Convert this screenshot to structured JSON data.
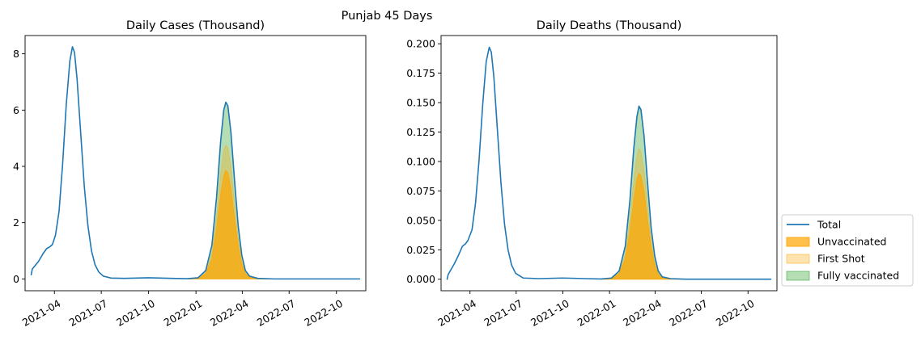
{
  "figure": {
    "suptitle": "Punjab 45 Days"
  },
  "legend": {
    "placement": "outside-right",
    "entries": [
      {
        "label": "Total",
        "kind": "line",
        "color": "#1f77b4"
      },
      {
        "label": "Unvaccinated",
        "kind": "patch",
        "color": "#ffa500",
        "alpha": 0.7
      },
      {
        "label": "First Shot",
        "kind": "patch",
        "color": "#ffa500",
        "alpha": 0.3
      },
      {
        "label": "Fully vaccinated",
        "kind": "patch",
        "color": "#2ca02c",
        "alpha": 0.35
      }
    ]
  },
  "chart_data": [
    {
      "type": "area",
      "title": "Daily Cases (Thousand)",
      "x_type": "date",
      "xlim": [
        "2021-02-03",
        "2022-11-27"
      ],
      "ylim": [
        -0.42,
        8.65
      ],
      "x_ticks": [
        "2021-04",
        "2021-07",
        "2021-10",
        "2022-01",
        "2022-04",
        "2022-07",
        "2022-10"
      ],
      "y_ticks": [
        "0",
        "2",
        "4",
        "6",
        "8"
      ],
      "y_tick_values": [
        0,
        2,
        4,
        6,
        8
      ],
      "series": [
        {
          "name": "Total",
          "type": "line",
          "color": "#1f77b4",
          "points": [
            [
              "2021-02-15",
              0.15
            ],
            [
              "2021-02-17",
              0.35
            ],
            [
              "2021-03-01",
              0.62
            ],
            [
              "2021-03-10",
              0.9
            ],
            [
              "2021-03-17",
              1.08
            ],
            [
              "2021-03-23",
              1.14
            ],
            [
              "2021-03-28",
              1.22
            ],
            [
              "2021-04-03",
              1.55
            ],
            [
              "2021-04-10",
              2.4
            ],
            [
              "2021-04-17",
              4.1
            ],
            [
              "2021-04-24",
              6.2
            ],
            [
              "2021-05-01",
              7.75
            ],
            [
              "2021-05-06",
              8.25
            ],
            [
              "2021-05-10",
              8.05
            ],
            [
              "2021-05-15",
              7.1
            ],
            [
              "2021-05-22",
              5.2
            ],
            [
              "2021-05-29",
              3.3
            ],
            [
              "2021-06-05",
              1.9
            ],
            [
              "2021-06-12",
              1.0
            ],
            [
              "2021-06-19",
              0.5
            ],
            [
              "2021-06-26",
              0.25
            ],
            [
              "2021-07-05",
              0.1
            ],
            [
              "2021-07-20",
              0.03
            ],
            [
              "2021-08-15",
              0.02
            ],
            [
              "2021-10-01",
              0.04
            ],
            [
              "2021-11-15",
              0.02
            ],
            [
              "2021-12-15",
              0.01
            ],
            [
              "2022-01-05",
              0.04
            ],
            [
              "2022-01-20",
              0.3
            ],
            [
              "2022-02-01",
              1.2
            ],
            [
              "2022-02-10",
              2.9
            ],
            [
              "2022-02-18",
              4.9
            ],
            [
              "2022-02-24",
              6.0
            ],
            [
              "2022-02-28",
              6.28
            ],
            [
              "2022-03-04",
              6.15
            ],
            [
              "2022-03-10",
              5.2
            ],
            [
              "2022-03-17",
              3.5
            ],
            [
              "2022-03-24",
              1.9
            ],
            [
              "2022-03-31",
              0.85
            ],
            [
              "2022-04-07",
              0.3
            ],
            [
              "2022-04-15",
              0.1
            ],
            [
              "2022-05-01",
              0.02
            ],
            [
              "2022-06-01",
              0.0
            ],
            [
              "2022-11-15",
              0.0
            ]
          ]
        },
        {
          "name": "Unvaccinated",
          "type": "area",
          "color": "#ffa500",
          "alpha": 0.7,
          "points": [
            [
              "2021-12-15",
              0.0
            ],
            [
              "2022-01-05",
              0.02
            ],
            [
              "2022-01-20",
              0.18
            ],
            [
              "2022-02-01",
              0.72
            ],
            [
              "2022-02-10",
              1.78
            ],
            [
              "2022-02-18",
              3.0
            ],
            [
              "2022-02-24",
              3.68
            ],
            [
              "2022-02-28",
              3.87
            ],
            [
              "2022-03-04",
              3.78
            ],
            [
              "2022-03-10",
              3.2
            ],
            [
              "2022-03-17",
              2.15
            ],
            [
              "2022-03-24",
              1.17
            ],
            [
              "2022-03-31",
              0.52
            ],
            [
              "2022-04-07",
              0.18
            ],
            [
              "2022-04-15",
              0.06
            ],
            [
              "2022-05-01",
              0.01
            ],
            [
              "2022-06-01",
              0.0
            ],
            [
              "2022-11-15",
              0.0
            ]
          ]
        },
        {
          "name": "First Shot",
          "type": "area",
          "color": "#ffa500",
          "alpha": 0.3,
          "points": [
            [
              "2021-12-15",
              0.0
            ],
            [
              "2022-01-05",
              0.03
            ],
            [
              "2022-01-20",
              0.23
            ],
            [
              "2022-02-01",
              0.9
            ],
            [
              "2022-02-10",
              2.2
            ],
            [
              "2022-02-18",
              3.7
            ],
            [
              "2022-02-24",
              4.55
            ],
            [
              "2022-02-28",
              4.75
            ],
            [
              "2022-03-04",
              4.65
            ],
            [
              "2022-03-10",
              3.95
            ],
            [
              "2022-03-17",
              2.65
            ],
            [
              "2022-03-24",
              1.44
            ],
            [
              "2022-03-31",
              0.64
            ],
            [
              "2022-04-07",
              0.23
            ],
            [
              "2022-04-15",
              0.08
            ],
            [
              "2022-05-01",
              0.015
            ],
            [
              "2022-06-01",
              0.0
            ],
            [
              "2022-11-15",
              0.0
            ]
          ]
        },
        {
          "name": "Fully vaccinated",
          "type": "area",
          "color": "#2ca02c",
          "alpha": 0.35,
          "points": [
            [
              "2021-12-15",
              0.0
            ],
            [
              "2022-01-05",
              0.04
            ],
            [
              "2022-01-20",
              0.3
            ],
            [
              "2022-02-01",
              1.2
            ],
            [
              "2022-02-10",
              2.9
            ],
            [
              "2022-02-18",
              4.9
            ],
            [
              "2022-02-24",
              6.0
            ],
            [
              "2022-02-28",
              6.28
            ],
            [
              "2022-03-04",
              6.15
            ],
            [
              "2022-03-10",
              5.2
            ],
            [
              "2022-03-17",
              3.5
            ],
            [
              "2022-03-24",
              1.9
            ],
            [
              "2022-03-31",
              0.85
            ],
            [
              "2022-04-07",
              0.3
            ],
            [
              "2022-04-15",
              0.1
            ],
            [
              "2022-05-01",
              0.02
            ],
            [
              "2022-06-01",
              0.0
            ],
            [
              "2022-11-15",
              0.0
            ]
          ]
        }
      ]
    },
    {
      "type": "area",
      "title": "Daily Deaths (Thousand)",
      "x_type": "date",
      "xlim": [
        "2021-02-03",
        "2022-11-27"
      ],
      "ylim": [
        -0.0098,
        0.207
      ],
      "x_ticks": [
        "2021-04",
        "2021-07",
        "2021-10",
        "2022-01",
        "2022-04",
        "2022-07",
        "2022-10"
      ],
      "y_ticks": [
        "0.000",
        "0.025",
        "0.050",
        "0.075",
        "0.100",
        "0.125",
        "0.150",
        "0.175",
        "0.200"
      ],
      "y_tick_values": [
        0,
        0.025,
        0.05,
        0.075,
        0.1,
        0.125,
        0.15,
        0.175,
        0.2
      ],
      "series": [
        {
          "name": "Total",
          "type": "line",
          "color": "#1f77b4",
          "points": [
            [
              "2021-02-15",
              0.0
            ],
            [
              "2021-02-17",
              0.004
            ],
            [
              "2021-03-01",
              0.013
            ],
            [
              "2021-03-10",
              0.021
            ],
            [
              "2021-03-17",
              0.028
            ],
            [
              "2021-03-23",
              0.03
            ],
            [
              "2021-03-28",
              0.033
            ],
            [
              "2021-04-05",
              0.042
            ],
            [
              "2021-04-12",
              0.065
            ],
            [
              "2021-04-19",
              0.102
            ],
            [
              "2021-04-26",
              0.148
            ],
            [
              "2021-05-03",
              0.185
            ],
            [
              "2021-05-09",
              0.197
            ],
            [
              "2021-05-13",
              0.193
            ],
            [
              "2021-05-18",
              0.172
            ],
            [
              "2021-05-25",
              0.127
            ],
            [
              "2021-06-01",
              0.082
            ],
            [
              "2021-06-08",
              0.047
            ],
            [
              "2021-06-15",
              0.025
            ],
            [
              "2021-06-22",
              0.012
            ],
            [
              "2021-06-30",
              0.005
            ],
            [
              "2021-07-15",
              0.001
            ],
            [
              "2021-08-15",
              0.0005
            ],
            [
              "2021-10-01",
              0.001
            ],
            [
              "2021-11-15",
              0.0005
            ],
            [
              "2021-12-15",
              0.0002
            ],
            [
              "2022-01-05",
              0.001
            ],
            [
              "2022-01-20",
              0.007
            ],
            [
              "2022-02-01",
              0.028
            ],
            [
              "2022-02-10",
              0.066
            ],
            [
              "2022-02-18",
              0.112
            ],
            [
              "2022-02-24",
              0.138
            ],
            [
              "2022-02-28",
              0.147
            ],
            [
              "2022-03-04",
              0.144
            ],
            [
              "2022-03-10",
              0.122
            ],
            [
              "2022-03-17",
              0.082
            ],
            [
              "2022-03-24",
              0.044
            ],
            [
              "2022-03-31",
              0.02
            ],
            [
              "2022-04-07",
              0.007
            ],
            [
              "2022-04-15",
              0.002
            ],
            [
              "2022-05-01",
              0.0005
            ],
            [
              "2022-06-01",
              0.0
            ],
            [
              "2022-11-15",
              0.0
            ]
          ]
        },
        {
          "name": "Unvaccinated",
          "type": "area",
          "color": "#ffa500",
          "alpha": 0.7,
          "points": [
            [
              "2021-12-15",
              0.0
            ],
            [
              "2022-01-05",
              0.0006
            ],
            [
              "2022-01-20",
              0.0043
            ],
            [
              "2022-02-01",
              0.017
            ],
            [
              "2022-02-10",
              0.04
            ],
            [
              "2022-02-18",
              0.068
            ],
            [
              "2022-02-24",
              0.085
            ],
            [
              "2022-02-28",
              0.09
            ],
            [
              "2022-03-04",
              0.088
            ],
            [
              "2022-03-10",
              0.075
            ],
            [
              "2022-03-17",
              0.05
            ],
            [
              "2022-03-24",
              0.027
            ],
            [
              "2022-03-31",
              0.012
            ],
            [
              "2022-04-07",
              0.004
            ],
            [
              "2022-04-15",
              0.0012
            ],
            [
              "2022-05-01",
              0.0003
            ],
            [
              "2022-06-01",
              0.0
            ],
            [
              "2022-11-15",
              0.0
            ]
          ]
        },
        {
          "name": "First Shot",
          "type": "area",
          "color": "#ffa500",
          "alpha": 0.3,
          "points": [
            [
              "2021-12-15",
              0.0
            ],
            [
              "2022-01-05",
              0.0008
            ],
            [
              "2022-01-20",
              0.0052
            ],
            [
              "2022-02-01",
              0.021
            ],
            [
              "2022-02-10",
              0.05
            ],
            [
              "2022-02-18",
              0.084
            ],
            [
              "2022-02-24",
              0.104
            ],
            [
              "2022-02-28",
              0.111
            ],
            [
              "2022-03-04",
              0.108
            ],
            [
              "2022-03-10",
              0.092
            ],
            [
              "2022-03-17",
              0.062
            ],
            [
              "2022-03-24",
              0.033
            ],
            [
              "2022-03-31",
              0.015
            ],
            [
              "2022-04-07",
              0.005
            ],
            [
              "2022-04-15",
              0.0015
            ],
            [
              "2022-05-01",
              0.0004
            ],
            [
              "2022-06-01",
              0.0
            ],
            [
              "2022-11-15",
              0.0
            ]
          ]
        },
        {
          "name": "Fully vaccinated",
          "type": "area",
          "color": "#2ca02c",
          "alpha": 0.35,
          "points": [
            [
              "2021-12-15",
              0.0
            ],
            [
              "2022-01-05",
              0.001
            ],
            [
              "2022-01-20",
              0.007
            ],
            [
              "2022-02-01",
              0.028
            ],
            [
              "2022-02-10",
              0.066
            ],
            [
              "2022-02-18",
              0.112
            ],
            [
              "2022-02-24",
              0.138
            ],
            [
              "2022-02-28",
              0.147
            ],
            [
              "2022-03-04",
              0.144
            ],
            [
              "2022-03-10",
              0.122
            ],
            [
              "2022-03-17",
              0.082
            ],
            [
              "2022-03-24",
              0.044
            ],
            [
              "2022-03-31",
              0.02
            ],
            [
              "2022-04-07",
              0.007
            ],
            [
              "2022-04-15",
              0.002
            ],
            [
              "2022-05-01",
              0.0005
            ],
            [
              "2022-06-01",
              0.0
            ],
            [
              "2022-11-15",
              0.0
            ]
          ]
        }
      ]
    }
  ]
}
